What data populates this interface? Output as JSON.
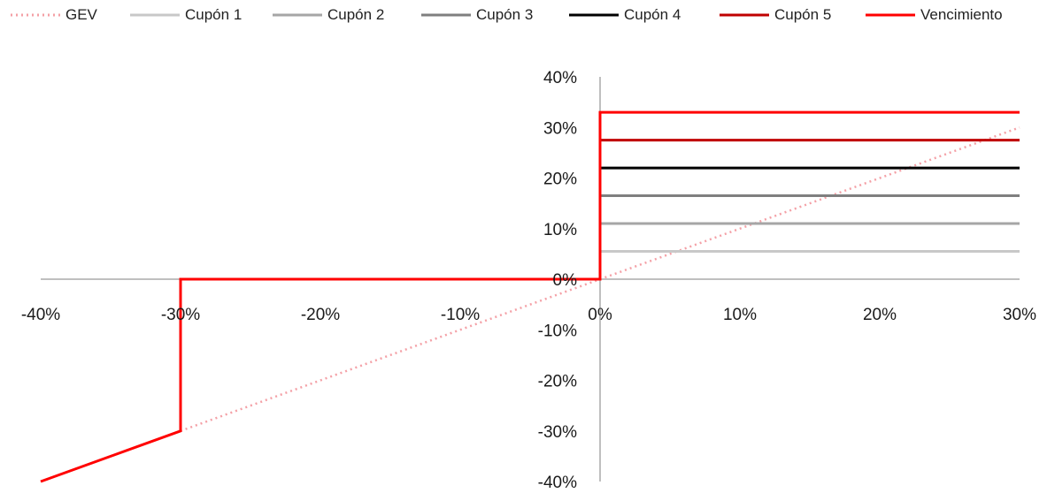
{
  "chart_data": {
    "type": "line",
    "title": "",
    "xlabel": "",
    "ylabel": "",
    "xlim": [
      -0.4,
      0.3
    ],
    "ylim": [
      -0.4,
      0.4
    ],
    "x_ticks": [
      "-40%",
      "-30%",
      "-20%",
      "-10%",
      "0%",
      "10%",
      "20%",
      "30%"
    ],
    "y_ticks": [
      "40%",
      "30%",
      "20%",
      "10%",
      "0%",
      "-10%",
      "-20%",
      "-30%",
      "-40%"
    ],
    "legend_position": "top",
    "grid": false,
    "series": [
      {
        "name": "GEV",
        "color": "#f4a0a6",
        "style": "dotted",
        "x": [
          -0.4,
          0.3
        ],
        "y": [
          -0.4,
          0.3
        ]
      },
      {
        "name": "Cupón 1",
        "color": "#c8c8c8",
        "style": "solid",
        "x": [
          0,
          0.3
        ],
        "y": [
          0.055,
          0.055
        ]
      },
      {
        "name": "Cupón 2",
        "color": "#a6a6a6",
        "style": "solid",
        "x": [
          0,
          0.3
        ],
        "y": [
          0.11,
          0.11
        ]
      },
      {
        "name": "Cupón 3",
        "color": "#7f7f7f",
        "style": "solid",
        "x": [
          0,
          0.3
        ],
        "y": [
          0.165,
          0.165
        ]
      },
      {
        "name": "Cupón 4",
        "color": "#000000",
        "style": "solid",
        "x": [
          0,
          0.3
        ],
        "y": [
          0.22,
          0.22
        ]
      },
      {
        "name": "Cupón 5",
        "color": "#c00000",
        "style": "solid",
        "x": [
          0,
          0.3
        ],
        "y": [
          0.275,
          0.275
        ]
      },
      {
        "name": "Vencimiento",
        "color": "#ff0000",
        "style": "solid",
        "x": [
          -0.4,
          -0.3,
          -0.3,
          0,
          0,
          0.3
        ],
        "y": [
          -0.4,
          -0.3,
          0,
          0,
          0.33,
          0.33
        ]
      }
    ]
  }
}
